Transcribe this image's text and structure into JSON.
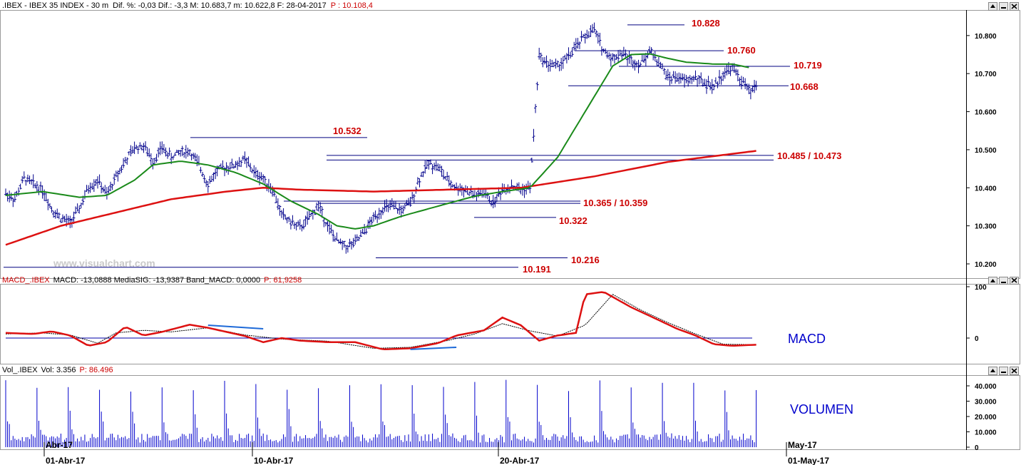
{
  "header": {
    "main_title": ".IBEX - IBEX 35 INDEX - 30 m",
    "main_stats": "Dif. %: -0,03  Dif.: -3,3  M: 10.683,7  m: 10.622,8  F: 28-04-2017",
    "main_price": "P : 10.108,4",
    "macd_title": "MACD_.IBEX",
    "macd_stats": "MACD: -13,0888  MediaSIG: -13,9387  Band_MACD: 0,0000",
    "macd_price": "P: 61,9258",
    "vol_title": "Vol_.IBEX",
    "vol_stats": "Vol: 3.356",
    "vol_price": "P: 86.496"
  },
  "watermark": "www.visualchart.com",
  "panel_labels": {
    "macd": "MACD",
    "volume": "VOLUMEN"
  },
  "colors": {
    "bars": "#00008b",
    "ma_fast": "#1a8a1a",
    "ma_slow": "#dd1111",
    "levels": "#000080",
    "level_labels": "#cc0000",
    "macd": "#dd1111",
    "signal": "#000000",
    "divergence": "#1e6ad8",
    "volume": "#0000cc"
  },
  "window_icons": [
    "arrow-up-icon",
    "minimize-icon",
    "close-icon"
  ],
  "chart_data": {
    "type": "ohlc",
    "instrument": "IBEX 35 INDEX",
    "timeframe": "30 m",
    "ylim": [
      10180,
      10870
    ],
    "y_ticks": [
      "10.800",
      "10.700",
      "10.600",
      "10.500",
      "10.400",
      "10.300",
      "10.200"
    ],
    "x_date_labels": [
      "01-Abr-17",
      "10-Abr-17",
      "20-Abr-17",
      "01-May-17"
    ],
    "x_top_labels": [
      "Abr-17",
      "May-17"
    ],
    "levels": [
      {
        "label": "10.828",
        "value": 10828
      },
      {
        "label": "10.760",
        "value": 10760
      },
      {
        "label": "10.719",
        "value": 10719
      },
      {
        "label": "10.668",
        "value": 10668
      },
      {
        "label": "10.532",
        "value": 10532
      },
      {
        "label": "10.485 / 10.473",
        "value": 10485,
        "value2": 10473
      },
      {
        "label": "10.365 / 10.359",
        "value": 10365,
        "value2": 10359
      },
      {
        "label": "10.322",
        "value": 10322
      },
      {
        "label": "10.216",
        "value": 10216
      },
      {
        "label": "10.191",
        "value": 10191
      }
    ],
    "price_path": [
      [
        0,
        10385
      ],
      [
        5,
        10370
      ],
      [
        10,
        10425
      ],
      [
        15,
        10410
      ],
      [
        20,
        10395
      ],
      [
        25,
        10345
      ],
      [
        30,
        10320
      ],
      [
        35,
        10308
      ],
      [
        40,
        10345
      ],
      [
        45,
        10400
      ],
      [
        50,
        10420
      ],
      [
        55,
        10380
      ],
      [
        60,
        10430
      ],
      [
        65,
        10470
      ],
      [
        70,
        10505
      ],
      [
        75,
        10510
      ],
      [
        80,
        10470
      ],
      [
        85,
        10505
      ],
      [
        90,
        10480
      ],
      [
        95,
        10495
      ],
      [
        100,
        10495
      ],
      [
        105,
        10460
      ],
      [
        110,
        10410
      ],
      [
        115,
        10445
      ],
      [
        120,
        10455
      ],
      [
        125,
        10460
      ],
      [
        130,
        10475
      ],
      [
        135,
        10440
      ],
      [
        140,
        10425
      ],
      [
        145,
        10395
      ],
      [
        150,
        10330
      ],
      [
        155,
        10310
      ],
      [
        160,
        10295
      ],
      [
        165,
        10320
      ],
      [
        170,
        10355
      ],
      [
        175,
        10300
      ],
      [
        180,
        10260
      ],
      [
        185,
        10245
      ],
      [
        190,
        10255
      ],
      [
        195,
        10285
      ],
      [
        200,
        10320
      ],
      [
        205,
        10345
      ],
      [
        210,
        10350
      ],
      [
        215,
        10340
      ],
      [
        220,
        10360
      ],
      [
        225,
        10425
      ],
      [
        230,
        10465
      ],
      [
        235,
        10455
      ],
      [
        240,
        10420
      ],
      [
        245,
        10400
      ],
      [
        250,
        10395
      ],
      [
        255,
        10380
      ],
      [
        260,
        10385
      ],
      [
        265,
        10360
      ],
      [
        270,
        10395
      ],
      [
        275,
        10405
      ],
      [
        280,
        10395
      ],
      [
        285,
        10400
      ],
      [
        290,
        10745
      ],
      [
        295,
        10725
      ],
      [
        300,
        10720
      ],
      [
        305,
        10740
      ],
      [
        310,
        10770
      ],
      [
        315,
        10800
      ],
      [
        320,
        10815
      ],
      [
        325,
        10760
      ],
      [
        330,
        10740
      ],
      [
        335,
        10755
      ],
      [
        340,
        10735
      ],
      [
        345,
        10725
      ],
      [
        350,
        10760
      ],
      [
        355,
        10730
      ],
      [
        360,
        10690
      ],
      [
        365,
        10690
      ],
      [
        370,
        10680
      ],
      [
        375,
        10690
      ],
      [
        380,
        10675
      ],
      [
        385,
        10665
      ],
      [
        390,
        10700
      ],
      [
        395,
        10715
      ],
      [
        400,
        10680
      ],
      [
        405,
        10650
      ],
      [
        408,
        10670
      ]
    ],
    "ma_fast": [
      [
        0,
        10380
      ],
      [
        20,
        10390
      ],
      [
        40,
        10375
      ],
      [
        55,
        10380
      ],
      [
        70,
        10420
      ],
      [
        80,
        10460
      ],
      [
        95,
        10470
      ],
      [
        110,
        10460
      ],
      [
        125,
        10440
      ],
      [
        140,
        10410
      ],
      [
        155,
        10365
      ],
      [
        170,
        10330
      ],
      [
        180,
        10300
      ],
      [
        190,
        10292
      ],
      [
        200,
        10300
      ],
      [
        215,
        10325
      ],
      [
        230,
        10345
      ],
      [
        245,
        10365
      ],
      [
        255,
        10378
      ],
      [
        270,
        10390
      ],
      [
        285,
        10400
      ],
      [
        300,
        10480
      ],
      [
        315,
        10600
      ],
      [
        330,
        10720
      ],
      [
        340,
        10750
      ],
      [
        350,
        10752
      ],
      [
        360,
        10740
      ],
      [
        370,
        10730
      ],
      [
        385,
        10725
      ],
      [
        395,
        10725
      ],
      [
        405,
        10715
      ]
    ],
    "ma_slow": [
      [
        0,
        10250
      ],
      [
        30,
        10300
      ],
      [
        60,
        10335
      ],
      [
        90,
        10370
      ],
      [
        120,
        10390
      ],
      [
        140,
        10400
      ],
      [
        160,
        10395
      ],
      [
        200,
        10390
      ],
      [
        240,
        10395
      ],
      [
        280,
        10400
      ],
      [
        320,
        10430
      ],
      [
        360,
        10468
      ],
      [
        408,
        10497
      ]
    ],
    "macd": {
      "name": "MACD",
      "ylim": [
        -40,
        110
      ],
      "y_ticks": [
        "100",
        "0"
      ],
      "macd_path": [
        [
          0,
          10
        ],
        [
          15,
          8
        ],
        [
          25,
          13
        ],
        [
          35,
          5
        ],
        [
          45,
          -15
        ],
        [
          55,
          -8
        ],
        [
          65,
          22
        ],
        [
          75,
          5
        ],
        [
          85,
          12
        ],
        [
          100,
          26
        ],
        [
          110,
          20
        ],
        [
          130,
          4
        ],
        [
          140,
          -8
        ],
        [
          150,
          0
        ],
        [
          160,
          -5
        ],
        [
          175,
          -8
        ],
        [
          190,
          -8
        ],
        [
          205,
          -22
        ],
        [
          220,
          -20
        ],
        [
          235,
          -10
        ],
        [
          245,
          5
        ],
        [
          260,
          15
        ],
        [
          270,
          40
        ],
        [
          280,
          25
        ],
        [
          290,
          -5
        ],
        [
          300,
          5
        ],
        [
          310,
          10
        ],
        [
          315,
          85
        ],
        [
          325,
          90
        ],
        [
          340,
          60
        ],
        [
          355,
          35
        ],
        [
          365,
          18
        ],
        [
          375,
          5
        ],
        [
          385,
          -12
        ],
        [
          395,
          -15
        ],
        [
          408,
          -13
        ]
      ],
      "signal_path": [
        [
          0,
          8
        ],
        [
          20,
          10
        ],
        [
          35,
          6
        ],
        [
          50,
          -10
        ],
        [
          60,
          10
        ],
        [
          75,
          15
        ],
        [
          90,
          12
        ],
        [
          110,
          20
        ],
        [
          130,
          6
        ],
        [
          150,
          -2
        ],
        [
          175,
          -6
        ],
        [
          200,
          -20
        ],
        [
          220,
          -18
        ],
        [
          240,
          -5
        ],
        [
          255,
          8
        ],
        [
          270,
          28
        ],
        [
          285,
          14
        ],
        [
          300,
          4
        ],
        [
          315,
          25
        ],
        [
          330,
          85
        ],
        [
          345,
          55
        ],
        [
          360,
          30
        ],
        [
          375,
          8
        ],
        [
          390,
          -12
        ],
        [
          408,
          -13
        ]
      ],
      "divergences": [
        [
          [
            110,
            25
          ],
          [
            140,
            18
          ]
        ],
        [
          [
            220,
            -22
          ],
          [
            245,
            -18
          ]
        ]
      ]
    },
    "volume": {
      "name": "Volume",
      "ylim": [
        0,
        46000
      ],
      "y_ticks": [
        "40.000",
        "30.000",
        "20.000",
        "10.000",
        "0"
      ]
    }
  }
}
